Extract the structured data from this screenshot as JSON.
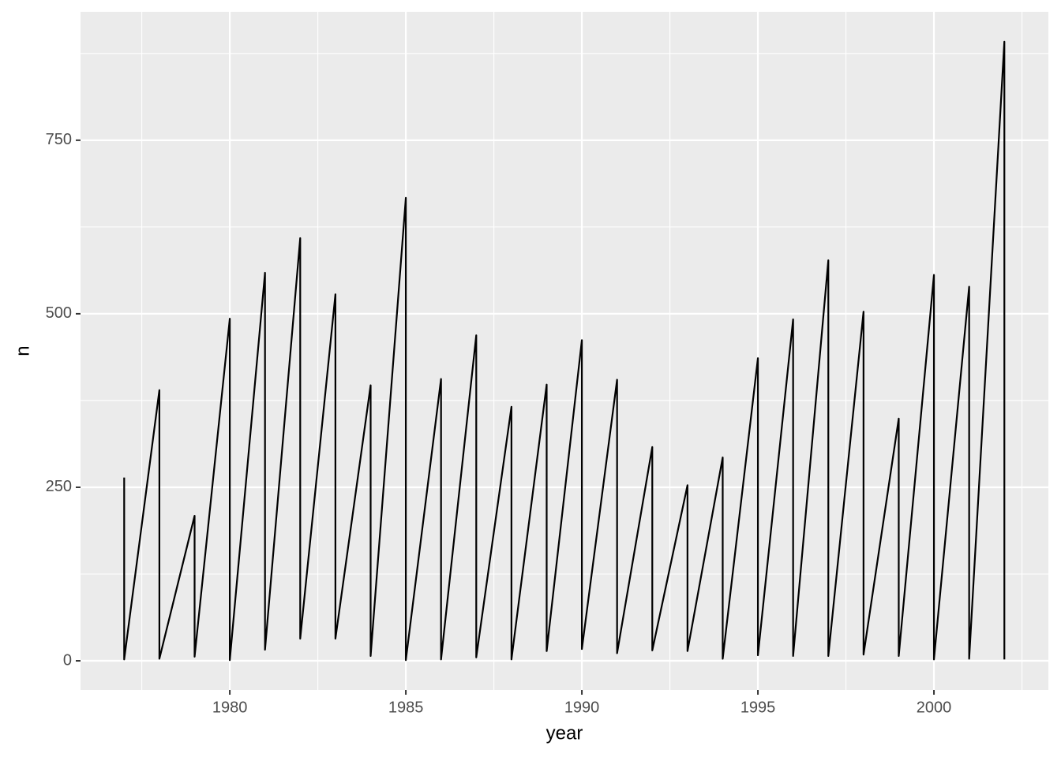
{
  "chart_data": {
    "type": "line",
    "x_label": "year",
    "y_label": "n",
    "x": [
      1977,
      1977,
      1978,
      1978,
      1979,
      1979,
      1980,
      1980,
      1981,
      1981,
      1982,
      1982,
      1983,
      1983,
      1984,
      1984,
      1985,
      1985,
      1986,
      1986,
      1987,
      1987,
      1988,
      1988,
      1989,
      1989,
      1990,
      1990,
      1991,
      1991,
      1992,
      1992,
      1993,
      1993,
      1994,
      1994,
      1995,
      1995,
      1996,
      1996,
      1997,
      1997,
      1998,
      1998,
      1999,
      1999,
      2000,
      2000,
      2001,
      2001,
      2002,
      2002
    ],
    "series": [
      {
        "color": "#000000",
        "values": [
          264,
          2,
          390,
          3,
          209,
          6,
          493,
          1,
          559,
          16,
          609,
          32,
          528,
          32,
          397,
          7,
          667,
          1,
          406,
          2,
          469,
          5,
          366,
          2,
          398,
          14,
          462,
          17,
          405,
          11,
          308,
          15,
          253,
          14,
          293,
          3,
          436,
          8,
          492,
          7,
          577,
          7,
          503,
          9,
          349,
          7,
          556,
          2,
          539,
          3,
          892,
          2
        ]
      }
    ],
    "xlim": [
      1975.76,
      2003.25
    ],
    "xticks": [
      1980,
      1985,
      1990,
      1995,
      2000
    ],
    "ylim": [
      -42,
      935
    ],
    "yticks": [
      0,
      250,
      500,
      750
    ],
    "grid": true
  }
}
